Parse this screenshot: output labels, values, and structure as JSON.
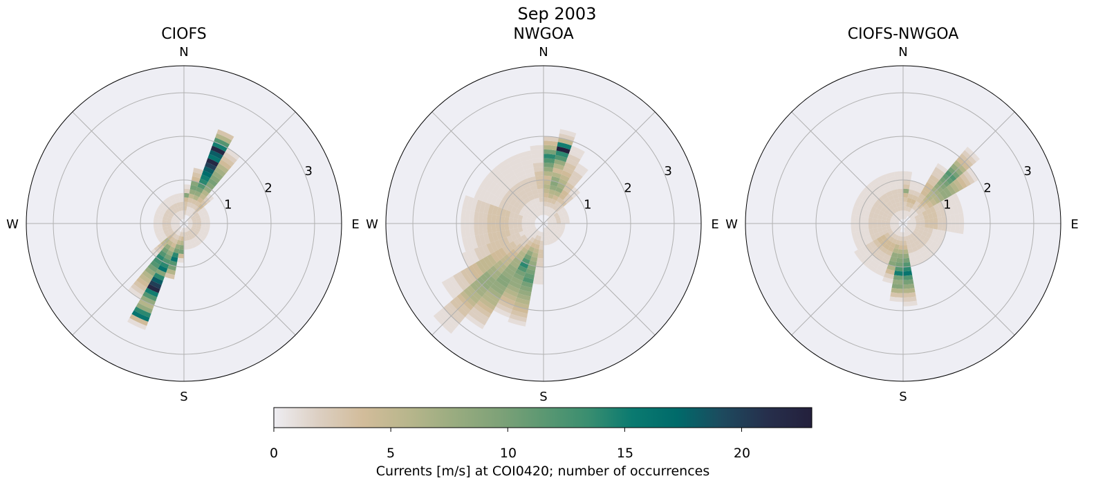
{
  "chart_data": {
    "type": "polar-histogram",
    "suptitle": "Sep 2003",
    "direction_bin_width_deg": 10,
    "speed_bin_width": 0.1,
    "rlim": [
      0,
      3.62
    ],
    "rticks": [
      "1",
      "2",
      "3"
    ],
    "direction_labels": [
      "N",
      "E",
      "S",
      "W"
    ],
    "grid": true,
    "colorbar": {
      "label": "Currents [m/s] at COI0420; number of occurrences",
      "range": [
        0,
        23
      ],
      "ticks": [
        "0",
        "5",
        "10",
        "15",
        "20"
      ],
      "orientation": "horizontal",
      "placement": "bottom",
      "colors": [
        "#eeedf2",
        "#dccfc2",
        "#d2bc9a",
        "#b8b68c",
        "#9aac80",
        "#7fa278",
        "#5c9872",
        "#3a8e70",
        "#0a7a70",
        "#006a6a",
        "#1d4a5e",
        "#262f4c",
        "#24203c"
      ]
    },
    "panels": [
      {
        "title": "CIOFS",
        "groups": [
          {
            "dirs": [
              25
            ],
            "counts": [
              0,
              0,
              1,
              1,
              2,
              3,
              6,
              8,
              10,
              12,
              14,
              15,
              17,
              18,
              20,
              22,
              16,
              18,
              22,
              15,
              12,
              6,
              3
            ]
          },
          {
            "dirs": [
              35
            ],
            "counts": [
              0,
              0,
              1,
              1,
              2,
              3,
              4,
              5,
              6,
              8,
              9,
              10,
              9,
              8,
              7,
              6,
              4,
              3,
              2,
              1
            ]
          },
          {
            "dirs": [
              15
            ],
            "counts": [
              0,
              0,
              1,
              1,
              2,
              3,
              5,
              8,
              10,
              9,
              4,
              3,
              2
            ]
          },
          {
            "dirs": [
              45
            ],
            "counts": [
              0,
              1,
              1,
              2,
              3,
              4,
              3,
              2,
              1
            ]
          },
          {
            "dirs": [
              5
            ],
            "counts": [
              0,
              1,
              2,
              3,
              3,
              4,
              9,
              2,
              1
            ]
          },
          {
            "dirs": [
              205
            ],
            "counts": [
              0,
              0,
              1,
              2,
              3,
              4,
              6,
              8,
              10,
              12,
              14,
              16,
              9,
              14,
              18,
              20,
              22,
              15,
              12,
              8,
              6,
              8,
              14,
              16,
              4,
              1
            ]
          },
          {
            "dirs": [
              215
            ],
            "counts": [
              0,
              1,
              1,
              2,
              3,
              5,
              8,
              10,
              12,
              14,
              13,
              12,
              10,
              8,
              6,
              5,
              4,
              3,
              2,
              1
            ]
          },
          {
            "dirs": [
              195
            ],
            "counts": [
              0,
              1,
              2,
              3,
              5,
              8,
              10,
              14,
              16,
              12,
              10,
              6,
              3
            ]
          },
          {
            "dirs": [
              185
            ],
            "counts": [
              0,
              1,
              2,
              4,
              6,
              9,
              10,
              4,
              1
            ]
          },
          {
            "dirs": [
              225
            ],
            "counts": [
              0,
              1,
              2,
              3,
              4,
              6,
              5,
              3,
              2,
              1
            ]
          },
          {
            "dirs": [
              55,
              65,
              75,
              85,
              95,
              105,
              115,
              125,
              135,
              145,
              155,
              165,
              175
            ],
            "counts": [
              0,
              1,
              2,
              2,
              1,
              1
            ]
          },
          {
            "dirs": [
              235,
              245,
              255,
              265,
              275,
              285,
              295,
              305,
              315,
              325,
              335,
              345,
              355
            ],
            "counts": [
              0,
              1,
              1,
              2,
              2,
              1,
              1
            ]
          }
        ]
      },
      {
        "title": "NWGOA",
        "groups": [
          {
            "dirs": [
              5
            ],
            "counts": [
              0,
              0,
              1,
              1,
              2,
              3,
              4,
              5,
              6,
              5,
              4,
              6,
              8,
              10,
              12,
              14,
              10,
              6,
              4,
              2
            ]
          },
          {
            "dirs": [
              15
            ],
            "counts": [
              0,
              0,
              1,
              1,
              2,
              3,
              5,
              6,
              8,
              9,
              8,
              6,
              4,
              6,
              8,
              12,
              14,
              23,
              15,
              5,
              2,
              1
            ]
          },
          {
            "dirs": [
              25
            ],
            "counts": [
              0,
              0,
              1,
              1,
              2,
              3,
              4,
              6,
              8,
              7,
              6,
              5,
              4,
              3,
              3,
              2,
              2,
              1,
              1
            ]
          },
          {
            "dirs": [
              35
            ],
            "counts": [
              0,
              0,
              1,
              1,
              2,
              2,
              3,
              4,
              4,
              3,
              3,
              2,
              2,
              2,
              1,
              1
            ]
          },
          {
            "dirs": [
              45
            ],
            "counts": [
              0,
              1,
              1,
              1,
              2,
              2,
              3,
              2,
              2,
              1,
              1
            ]
          },
          {
            "dirs": [
              55,
              65,
              75,
              85
            ],
            "counts": [
              0,
              1,
              1,
              2,
              1,
              1
            ]
          },
          {
            "dirs": [
              95,
              105,
              115,
              125,
              135,
              145,
              155,
              165,
              175
            ],
            "counts": [
              0,
              1,
              1,
              1,
              1
            ]
          },
          {
            "dirs": [
              185
            ],
            "counts": [
              0,
              0,
              1,
              1,
              2,
              2,
              3,
              3,
              2,
              2,
              1,
              1,
              1,
              1
            ]
          },
          {
            "dirs": [
              195
            ],
            "counts": [
              0,
              0,
              1,
              2,
              3,
              4,
              5,
              6,
              7,
              8,
              9,
              10,
              11,
              12,
              10,
              9,
              8,
              7,
              6,
              5,
              4,
              3,
              2,
              1
            ]
          },
          {
            "dirs": [
              205
            ],
            "counts": [
              0,
              0,
              1,
              2,
              3,
              4,
              6,
              8,
              10,
              12,
              14,
              12,
              10,
              9,
              8,
              8,
              7,
              6,
              5,
              4,
              3,
              2,
              1
            ]
          },
          {
            "dirs": [
              215
            ],
            "counts": [
              0,
              0,
              1,
              1,
              2,
              3,
              4,
              5,
              6,
              6,
              7,
              7,
              8,
              8,
              8,
              9,
              9,
              8,
              8,
              7,
              6,
              6,
              5,
              4,
              3,
              2,
              2,
              1
            ]
          },
          {
            "dirs": [
              225
            ],
            "counts": [
              0,
              0,
              1,
              1,
              1,
              2,
              2,
              3,
              3,
              4,
              4,
              5,
              5,
              6,
              6,
              7,
              7,
              8,
              8,
              8,
              7,
              7,
              6,
              6,
              5,
              4,
              3,
              3,
              2,
              2,
              1,
              1,
              1
            ]
          },
          {
            "dirs": [
              235
            ],
            "counts": [
              0,
              0,
              1,
              1,
              1,
              2,
              2,
              2,
              3,
              3,
              3,
              4,
              4,
              4,
              5,
              5,
              5,
              5,
              4,
              4,
              3,
              3,
              2,
              2,
              1,
              1,
              1
            ]
          },
          {
            "dirs": [
              245
            ],
            "counts": [
              0,
              0,
              1,
              1,
              1,
              1,
              2,
              2,
              2,
              3,
              3,
              3,
              3,
              3,
              2,
              2,
              2,
              1,
              1,
              1
            ]
          },
          {
            "dirs": [
              255,
              265,
              275,
              285
            ],
            "counts": [
              0,
              0,
              1,
              1,
              1,
              2,
              2,
              2,
              3,
              3,
              3,
              3,
              3,
              2,
              2,
              2,
              1,
              1,
              1
            ]
          },
          {
            "dirs": [
              295,
              305,
              315,
              325,
              335,
              345
            ],
            "counts": [
              0,
              0,
              1,
              1,
              1,
              1,
              2,
              2,
              2,
              2,
              2,
              1,
              1,
              1,
              1,
              1,
              1
            ]
          },
          {
            "dirs": [
              355
            ],
            "counts": [
              0,
              0,
              1,
              1,
              1,
              2,
              2,
              2,
              3,
              3,
              3,
              3,
              2,
              2,
              1,
              1,
              1,
              1
            ]
          }
        ]
      },
      {
        "title": "CIOFS-NWGOA",
        "groups": [
          {
            "dirs": [
              45
            ],
            "counts": [
              0,
              0,
              1,
              1,
              2,
              3,
              4,
              5,
              6,
              6,
              7,
              8,
              9,
              10,
              11,
              12,
              10,
              8,
              6,
              4,
              3,
              2,
              1
            ]
          },
          {
            "dirs": [
              55
            ],
            "counts": [
              0,
              0,
              1,
              1,
              2,
              2,
              3,
              4,
              5,
              6,
              7,
              8,
              8,
              7,
              6,
              5,
              4,
              3,
              2,
              1
            ]
          },
          {
            "dirs": [
              35
            ],
            "counts": [
              0,
              0,
              1,
              1,
              2,
              2,
              3,
              3,
              4,
              4,
              4,
              3,
              3,
              2,
              2,
              1
            ]
          },
          {
            "dirs": [
              65,
              75,
              85,
              95
            ],
            "counts": [
              0,
              1,
              1,
              2,
              2,
              3,
              3,
              3,
              2,
              2,
              1,
              1,
              1,
              1
            ]
          },
          {
            "dirs": [
              105,
              115,
              125,
              135,
              145,
              155,
              165
            ],
            "counts": [
              0,
              1,
              1,
              2,
              2,
              2,
              2,
              1,
              1,
              1
            ]
          },
          {
            "dirs": [
              175
            ],
            "counts": [
              0,
              0,
              1,
              2,
              3,
              4,
              6,
              8,
              10,
              12,
              14,
              16,
              12,
              10,
              8,
              6,
              3,
              2,
              1
            ]
          },
          {
            "dirs": [
              185
            ],
            "counts": [
              0,
              0,
              1,
              2,
              3,
              4,
              6,
              8,
              9,
              10,
              12,
              15,
              10,
              8,
              9,
              6,
              3,
              1
            ]
          },
          {
            "dirs": [
              195
            ],
            "counts": [
              0,
              0,
              1,
              2,
              3,
              5,
              6,
              8,
              8,
              9,
              6,
              4,
              2,
              1
            ]
          },
          {
            "dirs": [
              205,
              215,
              225,
              235
            ],
            "counts": [
              0,
              1,
              1,
              2,
              3,
              4,
              4,
              3,
              2,
              2,
              1,
              1,
              1
            ]
          },
          {
            "dirs": [
              245,
              255,
              265,
              275,
              285,
              295,
              305,
              315,
              325,
              335,
              345,
              355
            ],
            "counts": [
              0,
              1,
              1,
              2,
              2,
              2,
              2,
              2,
              1,
              1,
              1,
              1
            ]
          },
          {
            "dirs": [
              5
            ],
            "counts": [
              0,
              1,
              1,
              2,
              2,
              3,
              4,
              8,
              3,
              2,
              1,
              1
            ]
          },
          {
            "dirs": [
              15,
              25
            ],
            "counts": [
              0,
              1,
              1,
              2,
              3,
              4,
              3,
              2,
              1,
              1
            ]
          }
        ]
      }
    ]
  }
}
